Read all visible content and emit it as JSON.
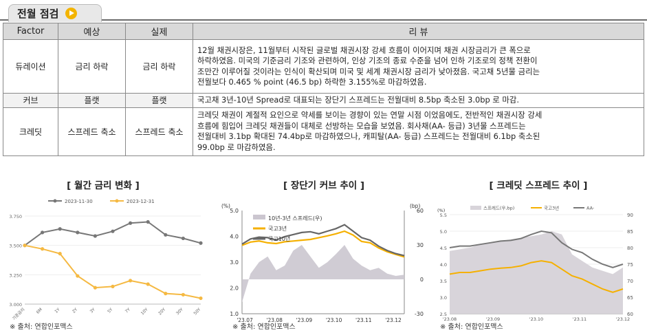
{
  "header": {
    "title": "전월 점검",
    "play_icon": "play-circle-icon",
    "accent": "#f3b400"
  },
  "table": {
    "headers": [
      "Factor",
      "예상",
      "실제",
      "리 뷰"
    ],
    "rows": [
      {
        "factor": "듀레이션",
        "expected": "금리 하락",
        "actual": "금리 하락",
        "review_lines": [
          "12월 채권시장은, 11월부터 시작된 글로벌 채권시장 강세 흐름이 이어지며 채권 시장금리가 큰 폭으로",
          "하락하였음. 미국의 기준금리 기조와 관련하여, 인상 기조의 종료 수준을 넘어 인하 기조로의 정책 전환이",
          "조만간 이루어질 것이라는 인식이 확산되며 미국 및 세계 채권시장 금리가 낮아졌음. 국고채 5년물 금리는",
          "전월보다 0.465 % point (46.5 bp) 하락한 3.155%로 마감하였음."
        ]
      },
      {
        "factor": "커브",
        "expected": "플랫",
        "actual": "플랫",
        "review_lines": [
          "국고채 3년-10년 Spread로 대표되는 장단기 스프레드는 전월대비 8.5bp 축소된 3.0bp 로 마감."
        ]
      },
      {
        "factor": "크레딧",
        "expected": "스프레드 축소",
        "actual": "스프레드 축소",
        "review_lines": [
          "크레딧 채권이 계절적 요인으로 약세를 보이는 경향이 있는 연말 시점 이었음에도, 전반적인 채권시장 강세",
          "흐름에 힘입어 크레딧 채권들이 대체로 선방하는 모습을 보였음. 회사채(AA- 등급) 3년물 스프레드는",
          "전월대비 3.1bp 확대된 74.4bp로 마감하였으나, 캐피탈(AA- 등급) 스프레드는 전월대비 6.1bp 축소된",
          "99.0bp 로 마감하였음."
        ]
      }
    ]
  },
  "chart_data": [
    {
      "type": "line",
      "title": "[ 월간 금리 변화 ]",
      "categories": [
        "기준금리",
        "6M",
        "1Y",
        "2Y",
        "3Y",
        "5Y",
        "7Y",
        "10Y",
        "20Y",
        "30Y",
        "50Y"
      ],
      "ylim": [
        3.0,
        3.75
      ],
      "yticks": [
        "3.750",
        "3.500",
        "3.250",
        "3.000"
      ],
      "legend_position": "top",
      "series": [
        {
          "name": "2023-11-30",
          "color": "#777777",
          "values": [
            3.5,
            3.61,
            3.64,
            3.61,
            3.58,
            3.62,
            3.69,
            3.7,
            3.59,
            3.56,
            3.52
          ]
        },
        {
          "name": "2023-12-31",
          "color": "#f5b942",
          "values": [
            3.5,
            3.47,
            3.43,
            3.24,
            3.14,
            3.15,
            3.2,
            3.17,
            3.09,
            3.08,
            3.05
          ]
        }
      ],
      "source": "※ 출처: 연합인포맥스"
    },
    {
      "type": "line",
      "title": "[ 장단기 커브 추이 ]",
      "x_ticks": [
        "'23.07",
        "'23.08",
        "'23.09",
        "'23.10",
        "'23.11",
        "'23.12"
      ],
      "ylim": [
        1.0,
        5.0
      ],
      "yticks": [
        "5.0",
        "4.0",
        "3.0",
        "2.0",
        "1.0"
      ],
      "ylabel_left": "(%)",
      "y2lim": [
        -30,
        60
      ],
      "y2ticks": [
        "60",
        "30",
        "0",
        "-30"
      ],
      "ylabel_right": "(bp)",
      "legend_position": "top-left",
      "series": [
        {
          "name": "10년-3년 스프레드(우)",
          "type": "area",
          "color": "#cbc6cf",
          "axis": "right",
          "values": [
            -20,
            5,
            15,
            20,
            8,
            12,
            25,
            30,
            20,
            10,
            15,
            22,
            30,
            18,
            12,
            8,
            10,
            5,
            3,
            4
          ]
        },
        {
          "name": "국고3년",
          "color": "#f5b000",
          "axis": "left",
          "values": [
            3.65,
            3.78,
            3.82,
            3.75,
            3.72,
            3.79,
            3.82,
            3.85,
            3.88,
            3.95,
            4.02,
            4.1,
            4.2,
            4.05,
            3.8,
            3.75,
            3.55,
            3.4,
            3.3,
            3.2
          ]
        },
        {
          "name": "국고10년",
          "color": "#666666",
          "axis": "left",
          "values": [
            3.7,
            3.9,
            3.97,
            3.95,
            3.86,
            3.99,
            4.07,
            4.15,
            4.18,
            4.1,
            4.2,
            4.3,
            4.45,
            4.2,
            3.95,
            3.85,
            3.62,
            3.45,
            3.33,
            3.25
          ]
        }
      ],
      "source": "※ 출처: 연합인포맥스"
    },
    {
      "type": "line",
      "title": "[ 크레딧 스프레드 추이 ]",
      "x_ticks": [
        "'23.08",
        "'23.09",
        "'23.10",
        "'23.11",
        "'23.12"
      ],
      "ylim": [
        2.5,
        5.5
      ],
      "yticks": [
        "5.5",
        "5.0",
        "4.5",
        "4.0",
        "3.5",
        "3.0",
        "2.5"
      ],
      "ylabel_left": "(%)",
      "y2lim": [
        60,
        90
      ],
      "y2ticks": [
        "90",
        "85",
        "80",
        "75",
        "70",
        "65",
        "60"
      ],
      "legend_position": "top",
      "series": [
        {
          "name": "스프레드(우,bp)",
          "type": "area",
          "color": "#d8d4da",
          "axis": "right",
          "values": [
            79,
            79.5,
            80,
            81,
            81.5,
            82,
            82.5,
            83,
            83.5,
            84,
            85,
            84,
            78,
            76,
            74,
            73,
            72,
            74
          ]
        },
        {
          "name": "국고3년",
          "color": "#f5b000",
          "axis": "left",
          "values": [
            3.7,
            3.75,
            3.75,
            3.8,
            3.85,
            3.88,
            3.9,
            3.95,
            4.05,
            4.1,
            4.05,
            3.85,
            3.65,
            3.55,
            3.4,
            3.25,
            3.15,
            3.25
          ]
        },
        {
          "name": "AA-",
          "color": "#777777",
          "axis": "left",
          "values": [
            4.5,
            4.55,
            4.55,
            4.6,
            4.65,
            4.7,
            4.72,
            4.78,
            4.9,
            5.0,
            4.95,
            4.65,
            4.45,
            4.35,
            4.15,
            4.0,
            3.9,
            4.0
          ]
        }
      ],
      "source": "※ 출처: 연합인포맥스"
    }
  ]
}
